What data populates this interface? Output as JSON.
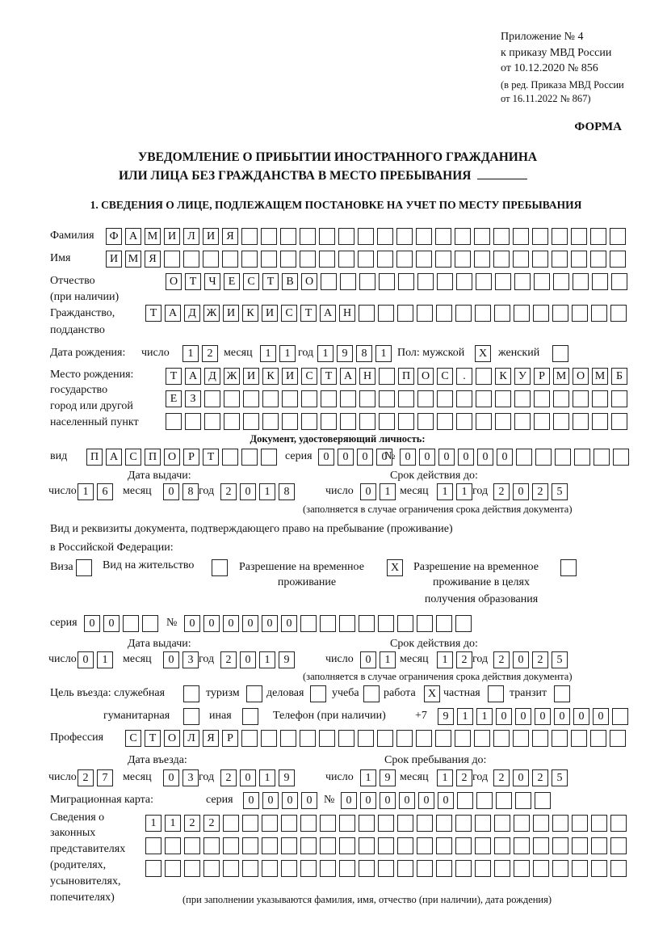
{
  "header": {
    "appendix": [
      "Приложение № 4",
      "к приказу МВД России",
      "от 10.12.2020 № 856"
    ],
    "edition": [
      "(в ред. Приказа МВД России",
      "от 16.11.2022 № 867)"
    ],
    "form_label": "ФОРМА",
    "title_line1": "УВЕДОМЛЕНИЕ О ПРИБЫТИИ ИНОСТРАННОГО ГРАЖДАНИНА",
    "title_line2": "ИЛИ ЛИЦА БЕЗ ГРАЖДАНСТВА В МЕСТО ПРЕБЫВАНИЯ",
    "section1": "1. СВЕДЕНИЯ О ЛИЦЕ, ПОДЛЕЖАЩЕМ ПОСТАНОВКЕ НА УЧЕТ ПО МЕСТУ ПРЕБЫВАНИЯ"
  },
  "labels": {
    "surname": "Фамилия",
    "name": "Имя",
    "patronymic": "Отчество",
    "patronymic_note": "(при наличии)",
    "citizenship": "Гражданство,",
    "citizenship2": "подданство",
    "birth_date": "Дата рождения:",
    "day": "число",
    "month": "месяц",
    "year": "год",
    "sex": "Пол: мужской",
    "female": "женский",
    "birthplace": [
      "Место рождения:",
      "государство",
      "город или другой",
      "населенный пункт"
    ],
    "id_doc": "Документ, удостоверяющий личность:",
    "kind": "вид",
    "series": "серия",
    "number": "№",
    "issue_date": "Дата выдачи:",
    "valid_until": "Срок действия до:",
    "valid_note": "(заполняется в случае ограничения срока действия документа)",
    "right_doc1": "Вид и реквизиты документа, подтверждающего право на пребывание (проживание)",
    "right_doc2": "в Российской Федерации:",
    "visa": "Виза",
    "residence": "Вид на жительство",
    "trp1": "Разрешение на временное",
    "trp2": "проживание",
    "trp_edu1": "Разрешение на временное",
    "trp_edu2": "проживание в целях",
    "trp_edu3": "получения образования",
    "purpose": "Цель въезда: служебная",
    "tourism": "туризм",
    "business": "деловая",
    "study": "учеба",
    "work": "работа",
    "private": "частная",
    "transit": "транзит",
    "humanitarian": "гуманитарная",
    "other": "иная",
    "phone": "Телефон (при наличии)",
    "phone_prefix": "+7",
    "profession": "Профессия",
    "entry_date": "Дата въезда:",
    "stay_until": "Срок пребывания до:",
    "migration_card": "Миграционная карта:",
    "reps": [
      "Сведения о",
      "законных",
      "представителях",
      "(родителях,",
      "усыновителях,",
      "попечителях)"
    ],
    "reps_note": "(при заполнении указываются фамилия, имя, отчество (при наличии), дата рождения)"
  },
  "person": {
    "surname": "ФАМИЛИЯ",
    "name": "ИМЯ",
    "patronymic": "ОТЧЕСТВО",
    "citizenship": "ТАДЖИКИСТАН",
    "birth_day": "12",
    "birth_month": "11",
    "birth_year": "1981",
    "male": "X",
    "female": "",
    "birthplace1": "ТАДЖИКИСТАН ПОС. КУРМОМБ",
    "birthplace2": "ЕЗ",
    "birthplace3": ""
  },
  "id_document": {
    "kind": "ПАСПОРТ",
    "series": "0000",
    "number": "000000",
    "issue_day": "16",
    "issue_month": "08",
    "issue_year": "2018",
    "valid_day": "01",
    "valid_month": "11",
    "valid_year": "2025"
  },
  "right_document": {
    "visa": "",
    "residence": "",
    "trp": "X",
    "trp_edu": "",
    "series": "00",
    "number": "000000",
    "issue_day": "01",
    "issue_month": "03",
    "issue_year": "2019",
    "valid_day": "01",
    "valid_month": "12",
    "valid_year": "2025"
  },
  "purpose": {
    "official": "",
    "tourism": "",
    "business": "",
    "study": "",
    "work": "X",
    "private": "",
    "transit": "",
    "humanitarian": "",
    "other": ""
  },
  "phone": "911000000",
  "profession": "СТОЛЯР",
  "entry": {
    "entry_day": "27",
    "entry_month": "03",
    "entry_year": "2019",
    "stay_day": "19",
    "stay_month": "12",
    "stay_year": "2025"
  },
  "migration_card": {
    "series": "0000",
    "number": "000000"
  },
  "representatives": {
    "line1": "1122",
    "line2": "",
    "line3": ""
  }
}
